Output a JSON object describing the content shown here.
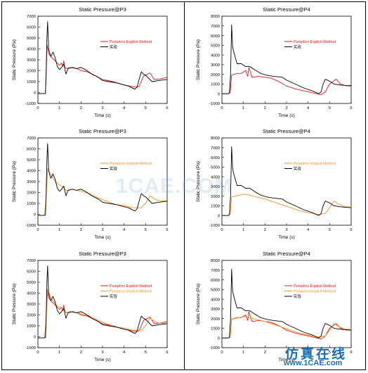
{
  "watermark": "1CAE.COM",
  "corner": {
    "cn": "仿真在线",
    "url": "www.1CAE.com"
  },
  "colors": {
    "experiment": "#000000",
    "explicit": "#e8171b",
    "implicit": "#f7931e"
  },
  "chart_data": [
    {
      "id": "p3-explicit",
      "type": "line",
      "title": "Static Pressure@P3",
      "xlabel": "Time (s)",
      "ylabel": "Static Pressure (Pa)",
      "xlim": [
        0,
        6
      ],
      "ylim": [
        -1000,
        7000
      ],
      "xticks": [
        "0",
        "1",
        "2",
        "3",
        "4",
        "5",
        "6"
      ],
      "yticks": [
        "-1000",
        "0",
        "1000",
        "2000",
        "3000",
        "4000",
        "5000",
        "6000",
        "7000"
      ],
      "legend_position": "upper-right",
      "series": [
        {
          "name": "Pumplinx Explicit Method",
          "color": "#e8171b",
          "x": [
            0,
            0.3,
            0.35,
            0.38,
            0.42,
            0.5,
            0.6,
            0.7,
            0.85,
            1.0,
            1.1,
            1.15,
            1.2,
            1.25,
            1.35,
            1.5,
            1.8,
            2.0,
            2.3,
            2.6,
            3.0,
            3.5,
            4.0,
            4.5,
            4.7,
            4.9,
            5.2,
            5.4,
            5.7,
            6.0
          ],
          "y": [
            -100,
            -100,
            -80,
            1500,
            4400,
            3600,
            3300,
            3100,
            2800,
            2500,
            2700,
            2400,
            2900,
            2300,
            2200,
            2300,
            2200,
            2000,
            1900,
            1600,
            1200,
            1000,
            700,
            500,
            550,
            1500,
            1800,
            1200,
            1250,
            1400
          ]
        },
        {
          "name": "实验",
          "color": "#000000",
          "x": [
            0,
            0.3,
            0.35,
            0.38,
            0.42,
            0.45,
            0.5,
            0.55,
            0.6,
            0.7,
            0.8,
            0.9,
            1.0,
            1.1,
            1.2,
            1.3,
            1.4,
            1.6,
            1.8,
            2.0,
            2.2,
            2.5,
            2.8,
            3.0,
            3.3,
            3.6,
            4.0,
            4.2,
            4.5,
            4.6,
            4.7,
            4.8,
            4.9,
            5.0,
            5.3,
            5.6,
            6.0
          ],
          "y": [
            -100,
            -100,
            -80,
            1800,
            5200,
            6500,
            4000,
            3600,
            3300,
            3700,
            3200,
            2400,
            2100,
            2300,
            2600,
            1700,
            2200,
            2300,
            2200,
            2300,
            2100,
            1700,
            1400,
            1100,
            1000,
            900,
            700,
            600,
            300,
            500,
            1200,
            1900,
            1700,
            1600,
            1000,
            1100,
            1200
          ]
        }
      ]
    },
    {
      "id": "p4-explicit",
      "type": "line",
      "title": "Static Pressure@P4",
      "xlabel": "Time (s)",
      "ylabel": "Static Pressure (Pa)",
      "xlim": [
        0,
        6
      ],
      "ylim": [
        -1000,
        8000
      ],
      "xticks": [
        "0",
        "1",
        "2",
        "3",
        "4",
        "5",
        "6"
      ],
      "yticks": [
        "-1000",
        "0",
        "1000",
        "2000",
        "3000",
        "4000",
        "5000",
        "6000",
        "7000",
        "8000"
      ],
      "legend_position": "upper-right",
      "series": [
        {
          "name": "Pumplinx Explicit Method",
          "color": "#e8171b",
          "x": [
            0,
            0.3,
            0.38,
            0.45,
            0.55,
            0.7,
            0.9,
            1.1,
            1.2,
            1.25,
            1.4,
            1.7,
            2.0,
            2.3,
            2.7,
            3.0,
            3.4,
            3.8,
            4.2,
            4.6,
            4.8,
            5.0,
            5.3,
            5.5,
            5.8,
            6.0
          ],
          "y": [
            0,
            0,
            100,
            1900,
            2000,
            2100,
            2100,
            2400,
            1800,
            2700,
            1700,
            1800,
            1700,
            1600,
            1200,
            800,
            500,
            300,
            100,
            -100,
            200,
            1000,
            1500,
            1000,
            800,
            900
          ]
        },
        {
          "name": "实验",
          "color": "#000000",
          "x": [
            0,
            0.3,
            0.35,
            0.4,
            0.45,
            0.5,
            0.55,
            0.7,
            0.9,
            1.1,
            1.3,
            1.5,
            1.8,
            2.1,
            2.4,
            2.8,
            3.0,
            3.4,
            3.8,
            4.2,
            4.4,
            4.5,
            4.6,
            4.7,
            4.8,
            5.0,
            5.2,
            5.5,
            6.0
          ],
          "y": [
            0,
            0,
            100,
            2000,
            7100,
            4800,
            4300,
            3100,
            3100,
            2800,
            2800,
            2500,
            2100,
            1900,
            1800,
            1700,
            1400,
            1000,
            600,
            300,
            100,
            0,
            200,
            1000,
            1500,
            1300,
            1000,
            900,
            800
          ]
        }
      ]
    },
    {
      "id": "p3-implicit",
      "type": "line",
      "title": "Static Pressure@P3",
      "xlabel": "Time (s)",
      "ylabel": "Static Pressure (Pa)",
      "xlim": [
        0,
        6
      ],
      "ylim": [
        -1000,
        7000
      ],
      "xticks": [
        "0",
        "1",
        "2",
        "3",
        "4",
        "5",
        "6"
      ],
      "yticks": [
        "-1000",
        "0",
        "1000",
        "2000",
        "3000",
        "4000",
        "5000",
        "6000",
        "7000"
      ],
      "legend_position": "upper-right",
      "series": [
        {
          "name": "Pumplinx Implicit Method",
          "color": "#f7931e",
          "x": [
            0,
            0.3,
            0.38,
            0.45,
            0.55,
            0.7,
            0.9,
            1.1,
            1.3,
            1.6,
            2.0,
            2.4,
            2.8,
            3.2,
            3.6,
            4.0,
            4.4,
            4.8,
            5.0,
            5.2,
            5.5,
            5.8,
            6.0
          ],
          "y": [
            -100,
            -100,
            1500,
            4200,
            3800,
            3300,
            2800,
            2600,
            2200,
            2300,
            2100,
            1900,
            1500,
            1200,
            900,
            800,
            600,
            600,
            1000,
            1700,
            1300,
            1200,
            1300
          ]
        },
        {
          "name": "实验",
          "color": "#000000",
          "x": [
            0,
            0.3,
            0.35,
            0.38,
            0.42,
            0.45,
            0.5,
            0.55,
            0.6,
            0.7,
            0.8,
            0.9,
            1.0,
            1.1,
            1.2,
            1.3,
            1.4,
            1.6,
            1.8,
            2.0,
            2.2,
            2.5,
            2.8,
            3.0,
            3.3,
            3.6,
            4.0,
            4.2,
            4.5,
            4.6,
            4.7,
            4.8,
            4.9,
            5.0,
            5.3,
            5.6,
            6.0
          ],
          "y": [
            -100,
            -100,
            -80,
            1800,
            5200,
            6500,
            4000,
            3600,
            3300,
            3700,
            3200,
            2400,
            2100,
            2300,
            2600,
            1700,
            2200,
            2300,
            2200,
            2300,
            2100,
            1700,
            1400,
            1100,
            1000,
            900,
            700,
            600,
            300,
            500,
            1200,
            1900,
            1700,
            1600,
            1000,
            1100,
            1200
          ]
        }
      ]
    },
    {
      "id": "p4-implicit",
      "type": "line",
      "title": "Static Pressure@P4",
      "xlabel": "Time (s)",
      "ylabel": "Static Pressure (Pa)",
      "xlim": [
        0,
        6
      ],
      "ylim": [
        -1000,
        8000
      ],
      "xticks": [
        "0",
        "1",
        "2",
        "3",
        "4",
        "5",
        "6"
      ],
      "yticks": [
        "-1000",
        "0",
        "1000",
        "2000",
        "3000",
        "4000",
        "5000",
        "6000",
        "7000",
        "8000"
      ],
      "legend_position": "upper-right",
      "series": [
        {
          "name": "Pumplinx Implicit Method",
          "color": "#f7931e",
          "x": [
            0,
            0.3,
            0.38,
            0.45,
            0.6,
            0.8,
            1.0,
            1.3,
            1.6,
            2.0,
            2.4,
            2.8,
            3.2,
            3.6,
            4.0,
            4.4,
            4.8,
            5.0,
            5.2,
            5.4,
            5.7,
            6.0
          ],
          "y": [
            0,
            0,
            100,
            1900,
            2000,
            2100,
            2200,
            2100,
            1900,
            1700,
            1400,
            1100,
            800,
            500,
            300,
            100,
            200,
            800,
            1500,
            1200,
            900,
            900
          ]
        },
        {
          "name": "实验",
          "color": "#000000",
          "x": [
            0,
            0.3,
            0.35,
            0.4,
            0.45,
            0.5,
            0.55,
            0.7,
            0.9,
            1.1,
            1.3,
            1.5,
            1.8,
            2.1,
            2.4,
            2.8,
            3.0,
            3.4,
            3.8,
            4.2,
            4.4,
            4.5,
            4.6,
            4.7,
            4.8,
            5.0,
            5.2,
            5.5,
            6.0
          ],
          "y": [
            0,
            0,
            100,
            2000,
            7100,
            4800,
            4300,
            3100,
            3100,
            2800,
            2800,
            2500,
            2100,
            1900,
            1800,
            1700,
            1400,
            1000,
            600,
            300,
            100,
            0,
            200,
            1000,
            1500,
            1300,
            1000,
            900,
            800
          ]
        }
      ]
    },
    {
      "id": "p3-both",
      "type": "line",
      "title": "Static Pressure@P3",
      "xlabel": "Time (s)",
      "ylabel": "Static Pressure (Pa)",
      "xlim": [
        0,
        6
      ],
      "ylim": [
        -1000,
        7000
      ],
      "xticks": [
        "0",
        "1",
        "2",
        "3",
        "4",
        "5",
        "6"
      ],
      "yticks": [
        "-1000",
        "0",
        "1000",
        "2000",
        "3000",
        "4000",
        "5000",
        "6000",
        "7000"
      ],
      "legend_position": "upper-right",
      "series": [
        {
          "name": "Pumplinx Explicit Method",
          "color": "#e8171b",
          "x": [
            0,
            0.3,
            0.35,
            0.38,
            0.42,
            0.5,
            0.6,
            0.7,
            0.85,
            1.0,
            1.1,
            1.15,
            1.2,
            1.25,
            1.35,
            1.5,
            1.8,
            2.0,
            2.3,
            2.6,
            3.0,
            3.5,
            4.0,
            4.5,
            4.7,
            4.9,
            5.2,
            5.4,
            5.7,
            6.0
          ],
          "y": [
            -100,
            -100,
            -80,
            1500,
            4400,
            3600,
            3300,
            3100,
            2800,
            2500,
            2700,
            2400,
            2900,
            2300,
            2200,
            2300,
            2200,
            2000,
            1900,
            1600,
            1200,
            1000,
            700,
            500,
            550,
            1500,
            1800,
            1200,
            1250,
            1400
          ]
        },
        {
          "name": "Pumplinx Implicit Method",
          "color": "#f7931e",
          "x": [
            0,
            0.3,
            0.38,
            0.45,
            0.55,
            0.7,
            0.9,
            1.1,
            1.3,
            1.6,
            2.0,
            2.4,
            2.8,
            3.2,
            3.6,
            4.0,
            4.4,
            4.8,
            5.0,
            5.2,
            5.5,
            5.8,
            6.0
          ],
          "y": [
            -100,
            -100,
            1500,
            4200,
            3800,
            3300,
            2800,
            2600,
            2200,
            2300,
            2100,
            1900,
            1500,
            1200,
            900,
            800,
            600,
            600,
            1000,
            1700,
            1300,
            1200,
            1300
          ]
        },
        {
          "name": "实验",
          "color": "#000000",
          "x": [
            0,
            0.3,
            0.35,
            0.38,
            0.42,
            0.45,
            0.5,
            0.55,
            0.6,
            0.7,
            0.8,
            0.9,
            1.0,
            1.1,
            1.2,
            1.3,
            1.4,
            1.6,
            1.8,
            2.0,
            2.2,
            2.5,
            2.8,
            3.0,
            3.3,
            3.6,
            4.0,
            4.2,
            4.5,
            4.6,
            4.7,
            4.8,
            4.9,
            5.0,
            5.3,
            5.6,
            6.0
          ],
          "y": [
            -100,
            -100,
            -80,
            1800,
            5200,
            6500,
            4000,
            3600,
            3300,
            3700,
            3200,
            2400,
            2100,
            2300,
            2600,
            1700,
            2200,
            2300,
            2200,
            2300,
            2100,
            1700,
            1400,
            1100,
            1000,
            900,
            700,
            600,
            300,
            500,
            1200,
            1900,
            1700,
            1600,
            1000,
            1100,
            1200
          ]
        }
      ]
    },
    {
      "id": "p4-both",
      "type": "line",
      "title": "Static Pressure@P4",
      "xlabel": "Time (s)",
      "ylabel": "Static Pressure (Pa)",
      "xlim": [
        0,
        6
      ],
      "ylim": [
        -1000,
        8000
      ],
      "xticks": [
        "0",
        "1",
        "2",
        "3",
        "4",
        "5",
        "6"
      ],
      "yticks": [
        "-1000",
        "0",
        "1000",
        "2000",
        "3000",
        "4000",
        "5000",
        "6000",
        "7000",
        "8000"
      ],
      "legend_position": "upper-right",
      "series": [
        {
          "name": "Pumplinx Explicit Method",
          "color": "#e8171b",
          "x": [
            0,
            0.3,
            0.38,
            0.45,
            0.55,
            0.7,
            0.9,
            1.1,
            1.2,
            1.25,
            1.4,
            1.7,
            2.0,
            2.3,
            2.7,
            3.0,
            3.4,
            3.8,
            4.2,
            4.6,
            4.8,
            5.0,
            5.3,
            5.5,
            5.8,
            6.0
          ],
          "y": [
            0,
            0,
            100,
            1900,
            2000,
            2100,
            2100,
            2400,
            1800,
            2700,
            1700,
            1800,
            1700,
            1600,
            1200,
            800,
            500,
            300,
            100,
            -100,
            200,
            1000,
            1500,
            1000,
            800,
            900
          ]
        },
        {
          "name": "Pumplinx Implicit Method",
          "color": "#f7931e",
          "x": [
            0,
            0.3,
            0.38,
            0.45,
            0.6,
            0.8,
            1.0,
            1.3,
            1.6,
            2.0,
            2.4,
            2.8,
            3.2,
            3.6,
            4.0,
            4.4,
            4.8,
            5.0,
            5.2,
            5.4,
            5.7,
            6.0
          ],
          "y": [
            0,
            0,
            100,
            1900,
            2000,
            2100,
            2200,
            2100,
            1900,
            1700,
            1400,
            1100,
            800,
            500,
            300,
            100,
            200,
            800,
            1500,
            1200,
            900,
            900
          ]
        },
        {
          "name": "实验",
          "color": "#000000",
          "x": [
            0,
            0.3,
            0.35,
            0.4,
            0.45,
            0.5,
            0.55,
            0.7,
            0.9,
            1.1,
            1.3,
            1.5,
            1.8,
            2.1,
            2.4,
            2.8,
            3.0,
            3.4,
            3.8,
            4.2,
            4.4,
            4.5,
            4.6,
            4.7,
            4.8,
            5.0,
            5.2,
            5.5,
            6.0
          ],
          "y": [
            0,
            0,
            100,
            2000,
            7100,
            4800,
            4300,
            3100,
            3100,
            2800,
            2800,
            2500,
            2100,
            1900,
            1800,
            1700,
            1400,
            1000,
            600,
            300,
            100,
            0,
            200,
            1000,
            1500,
            1300,
            1000,
            900,
            800
          ]
        }
      ]
    }
  ]
}
